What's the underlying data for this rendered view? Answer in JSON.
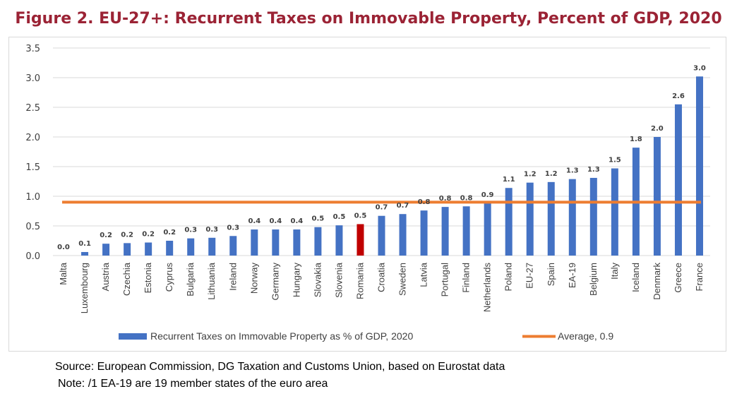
{
  "title": "Figure 2. EU-27+: Recurrent Taxes on Immovable Property, Percent of GDP, 2020",
  "source": "Source: European Commission, DG Taxation and Customs Union, based on Eurostat data",
  "note": "Note: /1 EA-19 are 19 member states of the euro area",
  "colors": {
    "bar": "#4472c4",
    "highlight": "#c00000",
    "average": "#ed7d31",
    "title": "#9b2335"
  },
  "chart_data": {
    "type": "bar",
    "title": "Figure 2. EU-27+: Recurrent Taxes on Immovable Property, Percent of GDP, 2020",
    "xlabel": "",
    "ylabel": "",
    "ylim": [
      0,
      3.5
    ],
    "yticks": [
      "0.0",
      "0.5",
      "1.0",
      "1.5",
      "2.0",
      "2.5",
      "3.0",
      "3.5"
    ],
    "grid": true,
    "legend_position": "bottom",
    "categories": [
      "Malta",
      "Luxembourg",
      "Austria",
      "Czechia",
      "Estonia",
      "Cyprus",
      "Bulgaria",
      "Lithuania",
      "Ireland",
      "Norway",
      "Germany",
      "Hungary",
      "Slovakia",
      "Slovenia",
      "Romania",
      "Croatia",
      "Sweden",
      "Latvia",
      "Portugal",
      "Finland",
      "Netherlands",
      "Poland",
      "EU-27",
      "Spain",
      "EA-19",
      "Belgium",
      "Italy",
      "Iceland",
      "Denmark",
      "Greece",
      "France"
    ],
    "highlight_category": "Romania",
    "series": [
      {
        "name": "Recurrent Taxes on Immovable Property as % of GDP, 2020",
        "values": [
          0.0,
          0.06,
          0.2,
          0.21,
          0.22,
          0.25,
          0.29,
          0.3,
          0.33,
          0.44,
          0.44,
          0.44,
          0.48,
          0.51,
          0.53,
          0.67,
          0.7,
          0.76,
          0.82,
          0.83,
          0.88,
          1.14,
          1.23,
          1.24,
          1.29,
          1.31,
          1.47,
          1.82,
          2.0,
          2.55,
          3.02
        ],
        "labels": [
          "0.0",
          "0.1",
          "0.2",
          "0.2",
          "0.2",
          "0.2",
          "0.3",
          "0.3",
          "0.3",
          "0.4",
          "0.4",
          "0.4",
          "0.5",
          "0.5",
          "0.5",
          "0.7",
          "0.7",
          "0.8",
          "0.8",
          "0.8",
          "0.9",
          "1.1",
          "1.2",
          "1.2",
          "1.3",
          "1.3",
          "1.5",
          "1.8",
          "2.0",
          "2.6",
          "3.0"
        ]
      },
      {
        "name": "Average, 0.9",
        "type": "line",
        "value": 0.9
      }
    ]
  }
}
